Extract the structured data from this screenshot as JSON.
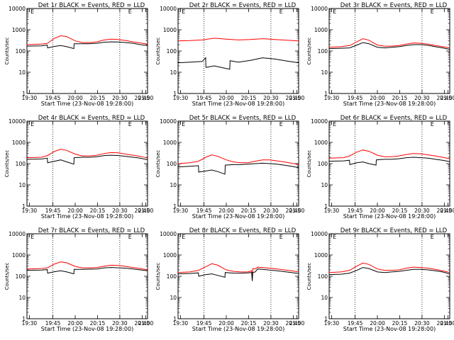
{
  "figure": {
    "x_label": "Start Time (23-Nov-08 19:28:00)",
    "y_label": "Counts/sec",
    "x_ticks": [
      "19:30",
      "19:45",
      "20:00",
      "20:15",
      "20:30",
      "20:45",
      "21:00"
    ],
    "y_ticks": [
      "1",
      "10",
      "100",
      "1000",
      "10000"
    ],
    "marker_label": "E",
    "colors": {
      "events": "#000000",
      "lld": "#ff0000",
      "axes": "#000000"
    }
  },
  "chart_data": [
    {
      "type": "line",
      "title": "Det 1r BLACK = Events, RED = LLD",
      "xlabel": "Start Time (23-Nov-08 19:28:00)",
      "ylabel": "Counts/sec",
      "y_scale": "log",
      "ylim": [
        1,
        10000
      ],
      "x_ticks": [
        "19:30",
        "19:45",
        "20:00",
        "20:15",
        "20:30",
        "20:45",
        "21:00"
      ],
      "series": [
        {
          "name": "LLD",
          "color": "#ff0000",
          "x": [
            0,
            12,
            17,
            23,
            28,
            33,
            40,
            46,
            52,
            58,
            64,
            70,
            76,
            82,
            88,
            94,
            100
          ],
          "y": [
            200,
            210,
            230,
            400,
            520,
            480,
            300,
            250,
            250,
            270,
            330,
            360,
            350,
            310,
            270,
            240,
            210
          ]
        },
        {
          "name": "Events",
          "color": "#000000",
          "x": [
            0,
            12,
            16.9,
            17.1,
            23,
            28,
            33,
            38.9,
            39.1,
            46,
            52,
            58,
            64,
            70,
            76,
            82,
            88,
            94,
            100
          ],
          "y": [
            170,
            175,
            190,
            140,
            165,
            180,
            160,
            130,
            220,
            220,
            220,
            230,
            260,
            270,
            265,
            250,
            230,
            200,
            180
          ]
        }
      ]
    },
    {
      "type": "line",
      "title": "Det 2r BLACK = Events, RED = LLD",
      "xlabel": "Start Time (23-Nov-08 19:28:00)",
      "ylabel": "Counts/sec",
      "y_scale": "log",
      "ylim": [
        1,
        10000
      ],
      "x_ticks": [
        "19:30",
        "19:45",
        "20:00",
        "20:15",
        "20:30",
        "20:45",
        "21:00"
      ],
      "series": [
        {
          "name": "LLD",
          "color": "#ff0000",
          "x": [
            0,
            10,
            20,
            30,
            40,
            50,
            60,
            70,
            80,
            90,
            100
          ],
          "y": [
            300,
            310,
            330,
            400,
            360,
            330,
            350,
            380,
            350,
            320,
            300
          ]
        },
        {
          "name": "Events",
          "color": "#000000",
          "x": [
            0,
            10,
            20,
            22.9,
            23.1,
            30,
            40,
            42.9,
            43.1,
            50,
            60,
            70,
            80,
            90,
            100
          ],
          "y": [
            28,
            30,
            32,
            48,
            17,
            20,
            15,
            14,
            35,
            30,
            36,
            48,
            42,
            34,
            28
          ]
        }
      ]
    },
    {
      "type": "line",
      "title": "Det 3r BLACK = Events, RED = LLD",
      "xlabel": "Start Time (23-Nov-08 19:28:00)",
      "ylabel": "Counts/sec",
      "y_scale": "log",
      "ylim": [
        1,
        10000
      ],
      "x_ticks": [
        "19:30",
        "19:45",
        "20:00",
        "20:15",
        "20:30",
        "20:45",
        "21:00"
      ],
      "series": [
        {
          "name": "LLD",
          "color": "#ff0000",
          "x": [
            0,
            10,
            17,
            23,
            28,
            33,
            40,
            46,
            52,
            58,
            64,
            70,
            76,
            82,
            88,
            94,
            100
          ],
          "y": [
            150,
            160,
            180,
            270,
            380,
            320,
            190,
            170,
            170,
            180,
            210,
            240,
            230,
            210,
            180,
            160,
            140
          ]
        },
        {
          "name": "Events",
          "color": "#000000",
          "x": [
            0,
            10,
            17,
            23,
            28,
            33,
            40,
            46,
            52,
            58,
            64,
            70,
            76,
            82,
            88,
            94,
            100
          ],
          "y": [
            130,
            135,
            140,
            190,
            250,
            220,
            150,
            140,
            150,
            160,
            180,
            200,
            200,
            185,
            160,
            140,
            120
          ]
        }
      ]
    },
    {
      "type": "line",
      "title": "Det 4r BLACK = Events, RED = LLD",
      "xlabel": "Start Time (23-Nov-08 19:28:00)",
      "ylabel": "Counts/sec",
      "y_scale": "log",
      "ylim": [
        1,
        10000
      ],
      "x_ticks": [
        "19:30",
        "19:45",
        "20:00",
        "20:15",
        "20:30",
        "20:45",
        "21:00"
      ],
      "series": [
        {
          "name": "LLD",
          "color": "#ff0000",
          "x": [
            0,
            12,
            17,
            23,
            28,
            33,
            40,
            46,
            52,
            58,
            64,
            70,
            76,
            82,
            88,
            94,
            100
          ],
          "y": [
            190,
            200,
            240,
            380,
            480,
            420,
            280,
            230,
            230,
            250,
            300,
            330,
            320,
            280,
            250,
            220,
            180
          ]
        },
        {
          "name": "Events",
          "color": "#000000",
          "x": [
            0,
            12,
            16.9,
            17.1,
            23,
            28,
            33,
            38.9,
            39.1,
            46,
            52,
            58,
            64,
            70,
            76,
            82,
            88,
            94,
            100
          ],
          "y": [
            160,
            165,
            180,
            110,
            130,
            150,
            120,
            95,
            190,
            200,
            200,
            210,
            240,
            250,
            240,
            220,
            200,
            180,
            150
          ]
        }
      ]
    },
    {
      "type": "line",
      "title": "Det 5r BLACK = Events, RED = LLD",
      "xlabel": "Start Time (23-Nov-08 19:28:00)",
      "ylabel": "Counts/sec",
      "y_scale": "log",
      "ylim": [
        1,
        10000
      ],
      "x_ticks": [
        "19:30",
        "19:45",
        "20:00",
        "20:15",
        "20:30",
        "20:45",
        "21:00"
      ],
      "series": [
        {
          "name": "LLD",
          "color": "#ff0000",
          "x": [
            0,
            10,
            17,
            23,
            28,
            33,
            40,
            46,
            52,
            58,
            64,
            70,
            76,
            82,
            88,
            94,
            100
          ],
          "y": [
            100,
            110,
            130,
            200,
            260,
            220,
            150,
            120,
            110,
            110,
            130,
            150,
            150,
            135,
            120,
            105,
            90
          ]
        },
        {
          "name": "Events",
          "color": "#000000",
          "x": [
            0,
            10,
            16.9,
            17.1,
            23,
            28,
            33,
            38.9,
            39.1,
            46,
            52,
            58,
            64,
            70,
            76,
            82,
            88,
            94,
            100
          ],
          "y": [
            70,
            75,
            80,
            40,
            45,
            50,
            42,
            32,
            85,
            90,
            90,
            95,
            100,
            105,
            100,
            95,
            85,
            75,
            65
          ]
        }
      ]
    },
    {
      "type": "line",
      "title": "Det 6r BLACK = Events, RED = LLD",
      "xlabel": "Start Time (23-Nov-08 19:28:00)",
      "ylabel": "Counts/sec",
      "y_scale": "log",
      "ylim": [
        1,
        10000
      ],
      "x_ticks": [
        "19:30",
        "19:45",
        "20:00",
        "20:15",
        "20:30",
        "20:45",
        "21:00"
      ],
      "series": [
        {
          "name": "LLD",
          "color": "#ff0000",
          "x": [
            0,
            12,
            17,
            23,
            28,
            33,
            40,
            46,
            52,
            58,
            64,
            70,
            76,
            82,
            88,
            94,
            100
          ],
          "y": [
            180,
            190,
            230,
            350,
            440,
            380,
            250,
            210,
            210,
            230,
            270,
            300,
            290,
            260,
            230,
            200,
            170
          ]
        },
        {
          "name": "Events",
          "color": "#000000",
          "x": [
            0,
            12,
            16.9,
            17.1,
            23,
            28,
            33,
            38.9,
            39.1,
            46,
            52,
            58,
            64,
            70,
            76,
            82,
            88,
            94,
            100
          ],
          "y": [
            130,
            135,
            145,
            90,
            110,
            120,
            100,
            85,
            150,
            160,
            160,
            170,
            190,
            200,
            190,
            180,
            160,
            145,
            125
          ]
        }
      ]
    },
    {
      "type": "line",
      "title": "Det 7r BLACK = Events, RED = LLD",
      "xlabel": "Start Time (23-Nov-08 19:28:00)",
      "ylabel": "Counts/sec",
      "y_scale": "log",
      "ylim": [
        1,
        10000
      ],
      "x_ticks": [
        "19:30",
        "19:45",
        "20:00",
        "20:15",
        "20:30",
        "20:45",
        "21:00"
      ],
      "series": [
        {
          "name": "LLD",
          "color": "#ff0000",
          "x": [
            0,
            12,
            17,
            23,
            28,
            33,
            40,
            46,
            52,
            58,
            64,
            70,
            76,
            82,
            88,
            94,
            100
          ],
          "y": [
            220,
            230,
            250,
            380,
            480,
            430,
            290,
            250,
            250,
            260,
            300,
            330,
            320,
            290,
            260,
            230,
            200
          ]
        },
        {
          "name": "Events",
          "color": "#000000",
          "x": [
            0,
            12,
            16.9,
            17.1,
            23,
            28,
            33,
            38.9,
            39.1,
            46,
            52,
            58,
            64,
            70,
            76,
            82,
            88,
            94,
            100
          ],
          "y": [
            190,
            195,
            205,
            140,
            165,
            180,
            160,
            130,
            210,
            210,
            215,
            220,
            250,
            260,
            250,
            240,
            220,
            200,
            180
          ]
        }
      ]
    },
    {
      "type": "line",
      "title": "Det 8r BLACK = Events, RED = LLD",
      "xlabel": "Start Time (23-Nov-08 19:28:00)",
      "ylabel": "Counts/sec",
      "y_scale": "log",
      "ylim": [
        1,
        10000
      ],
      "x_ticks": [
        "19:30",
        "19:45",
        "20:00",
        "20:15",
        "20:30",
        "20:45",
        "21:00"
      ],
      "series": [
        {
          "name": "LLD",
          "color": "#ff0000",
          "x": [
            0,
            10,
            17,
            23,
            28,
            33,
            40,
            46,
            52,
            58,
            61,
            61.5,
            62,
            64,
            66,
            70,
            76,
            82,
            88,
            94,
            100
          ],
          "y": [
            150,
            160,
            190,
            280,
            390,
            330,
            200,
            170,
            160,
            160,
            180,
            110,
            230,
            220,
            270,
            260,
            240,
            220,
            200,
            180,
            160
          ]
        },
        {
          "name": "Events",
          "color": "#000000",
          "x": [
            0,
            10,
            16.9,
            17.1,
            23,
            28,
            33,
            38.9,
            39.1,
            46,
            52,
            58,
            61,
            61.5,
            62,
            64,
            66,
            70,
            76,
            82,
            88,
            94,
            100
          ],
          "y": [
            130,
            135,
            145,
            100,
            120,
            130,
            110,
            90,
            150,
            140,
            140,
            145,
            150,
            60,
            150,
            160,
            220,
            210,
            195,
            180,
            165,
            150,
            135
          ]
        }
      ]
    },
    {
      "type": "line",
      "title": "Det 9r BLACK = Events, RED = LLD",
      "xlabel": "Start Time (23-Nov-08 19:28:00)",
      "ylabel": "Counts/sec",
      "y_scale": "log",
      "ylim": [
        1,
        10000
      ],
      "x_ticks": [
        "19:30",
        "19:45",
        "20:00",
        "20:15",
        "20:30",
        "20:45",
        "21:00"
      ],
      "series": [
        {
          "name": "LLD",
          "color": "#ff0000",
          "x": [
            0,
            10,
            17,
            23,
            28,
            33,
            40,
            46,
            52,
            58,
            64,
            70,
            76,
            82,
            88,
            94,
            100
          ],
          "y": [
            150,
            160,
            190,
            300,
            420,
            360,
            220,
            190,
            190,
            200,
            240,
            270,
            260,
            240,
            210,
            180,
            150
          ]
        },
        {
          "name": "Events",
          "color": "#000000",
          "x": [
            0,
            10,
            17,
            23,
            28,
            33,
            40,
            46,
            52,
            58,
            64,
            70,
            76,
            82,
            88,
            94,
            100
          ],
          "y": [
            120,
            125,
            140,
            190,
            260,
            230,
            160,
            150,
            160,
            170,
            190,
            210,
            210,
            200,
            180,
            160,
            130
          ]
        }
      ]
    }
  ]
}
